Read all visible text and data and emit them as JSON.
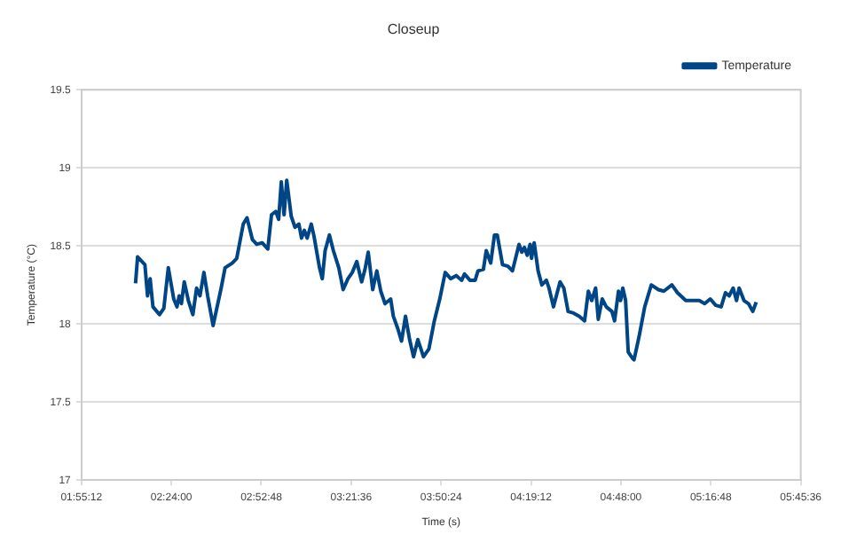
{
  "chart_data": {
    "type": "line",
    "title": "Closeup",
    "xlabel": "Time (s)",
    "ylabel": "Temperature (°C)",
    "xlim": [
      1.92,
      5.76
    ],
    "xticks": [
      {
        "value": 1.92,
        "label": "01:55:12"
      },
      {
        "value": 2.4,
        "label": "02:24:00"
      },
      {
        "value": 2.88,
        "label": "02:52:48"
      },
      {
        "value": 3.36,
        "label": "03:21:36"
      },
      {
        "value": 3.84,
        "label": "03:50:24"
      },
      {
        "value": 4.32,
        "label": "04:19:12"
      },
      {
        "value": 4.8,
        "label": "04:48:00"
      },
      {
        "value": 5.28,
        "label": "05:16:48"
      },
      {
        "value": 5.76,
        "label": "05:45:36"
      }
    ],
    "ylim": [
      17,
      19.5
    ],
    "yticks": [
      17,
      17.5,
      18,
      18.5,
      19,
      19.5
    ],
    "grid": "y",
    "legend": "top right",
    "marker": "none",
    "line_style": "solid",
    "x": [
      2.209,
      2.22,
      2.259,
      2.273,
      2.287,
      2.302,
      2.337,
      2.36,
      2.384,
      2.413,
      2.43,
      2.442,
      2.454,
      2.469,
      2.491,
      2.515,
      2.535,
      2.553,
      2.574,
      2.594,
      2.623,
      2.666,
      2.687,
      2.725,
      2.749,
      2.784,
      2.804,
      2.833,
      2.856,
      2.885,
      2.915,
      2.935,
      2.958,
      2.973,
      2.987,
      3.002,
      3.016,
      3.04,
      3.06,
      3.081,
      3.095,
      3.11,
      3.125,
      3.147,
      3.162,
      3.191,
      3.206,
      3.221,
      3.244,
      3.265,
      3.294,
      3.317,
      3.343,
      3.366,
      3.39,
      3.416,
      3.434,
      3.451,
      3.475,
      3.497,
      3.518,
      3.541,
      3.571,
      3.585,
      3.609,
      3.629,
      3.65,
      3.672,
      3.693,
      3.716,
      3.746,
      3.775,
      3.804,
      3.833,
      3.862,
      3.891,
      3.921,
      3.95,
      3.965,
      3.994,
      4.022,
      4.037,
      4.066,
      4.081,
      4.105,
      4.125,
      4.14,
      4.168,
      4.197,
      4.221,
      4.256,
      4.271,
      4.285,
      4.3,
      4.315,
      4.323,
      4.337,
      4.358,
      4.378,
      4.402,
      4.416,
      4.44,
      4.475,
      4.495,
      4.518,
      4.547,
      4.577,
      4.606,
      4.626,
      4.644,
      4.665,
      4.679,
      4.7,
      4.722,
      4.752,
      4.766,
      4.787,
      4.798,
      4.81,
      4.825,
      4.839,
      4.862,
      4.87,
      4.897,
      4.927,
      4.962,
      5.0,
      5.029,
      5.072,
      5.102,
      5.146,
      5.189,
      5.218,
      5.247,
      5.277,
      5.306,
      5.335,
      5.358,
      5.378,
      5.399,
      5.417,
      5.431,
      5.457,
      5.481,
      5.504,
      5.522
    ],
    "series": [
      {
        "name": "Temperature",
        "color": "#004586",
        "values": [
          18.26,
          18.43,
          18.38,
          18.18,
          18.29,
          18.11,
          18.06,
          18.1,
          18.36,
          18.16,
          18.11,
          18.18,
          18.13,
          18.27,
          18.15,
          18.06,
          18.23,
          18.18,
          18.33,
          18.18,
          17.99,
          18.23,
          18.36,
          18.39,
          18.42,
          18.64,
          18.68,
          18.54,
          18.51,
          18.52,
          18.48,
          18.7,
          18.72,
          18.67,
          18.91,
          18.7,
          18.92,
          18.69,
          18.62,
          18.64,
          18.55,
          18.6,
          18.55,
          18.64,
          18.56,
          18.36,
          18.29,
          18.47,
          18.57,
          18.47,
          18.36,
          18.22,
          18.29,
          18.33,
          18.4,
          18.27,
          18.35,
          18.46,
          18.22,
          18.34,
          18.21,
          18.13,
          18.16,
          18.05,
          17.97,
          17.89,
          18.05,
          17.9,
          17.79,
          17.9,
          17.79,
          17.84,
          18.02,
          18.16,
          18.33,
          18.29,
          18.31,
          18.28,
          18.32,
          18.28,
          18.28,
          18.34,
          18.35,
          18.47,
          18.39,
          18.57,
          18.57,
          18.38,
          18.37,
          18.34,
          18.51,
          18.46,
          18.49,
          18.44,
          18.51,
          18.42,
          18.52,
          18.34,
          18.25,
          18.28,
          18.23,
          18.11,
          18.27,
          18.23,
          18.08,
          18.07,
          18.05,
          18.02,
          18.21,
          18.15,
          18.23,
          18.03,
          18.16,
          18.11,
          18.08,
          18.02,
          18.21,
          18.15,
          18.23,
          18.15,
          17.82,
          17.78,
          17.77,
          17.92,
          18.11,
          18.25,
          18.22,
          18.21,
          18.25,
          18.2,
          18.15,
          18.15,
          18.15,
          18.13,
          18.16,
          18.12,
          18.11,
          18.2,
          18.18,
          18.23,
          18.15,
          18.23,
          18.15,
          18.13,
          18.08,
          18.14
        ]
      }
    ]
  }
}
